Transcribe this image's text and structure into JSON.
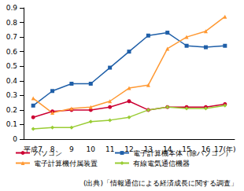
{
  "chart_data": {
    "type": "line",
    "categories": [
      "平成7",
      "8",
      "9",
      "10",
      "11",
      "12",
      "13",
      "14",
      "15",
      "16",
      "17(年)"
    ],
    "series": [
      {
        "name": "パソコン",
        "color": "#cc0033",
        "marker": "circle",
        "values": [
          0.15,
          0.19,
          0.2,
          0.2,
          0.22,
          0.26,
          0.2,
          0.22,
          0.22,
          0.22,
          0.24
        ]
      },
      {
        "name": "電子計算機本体（除パソコン）",
        "color": "#1f5fa8",
        "marker": "square",
        "values": [
          0.23,
          0.33,
          0.38,
          0.38,
          0.49,
          0.6,
          0.71,
          0.73,
          0.64,
          0.63,
          0.64
        ]
      },
      {
        "name": "電子計算機付属装置",
        "color": "#ff9933",
        "marker": "triangle",
        "values": [
          0.28,
          0.18,
          0.21,
          0.22,
          0.26,
          0.35,
          0.37,
          0.62,
          0.7,
          0.74,
          0.84
        ]
      },
      {
        "name": "有線電気通信機器",
        "color": "#99cc33",
        "marker": "diamond",
        "values": [
          0.07,
          0.08,
          0.08,
          0.12,
          0.13,
          0.15,
          0.2,
          0.22,
          0.21,
          0.21,
          0.23
        ]
      }
    ],
    "ylim": [
      0,
      0.9
    ],
    "yticks": [
      0,
      0.1,
      0.2,
      0.3,
      0.4,
      0.5,
      0.6,
      0.7,
      0.8,
      0.9
    ],
    "grid": false,
    "legend": "bottom",
    "annotations": [
      "(出典)「情報通信による経済成長に関する調査」"
    ]
  }
}
